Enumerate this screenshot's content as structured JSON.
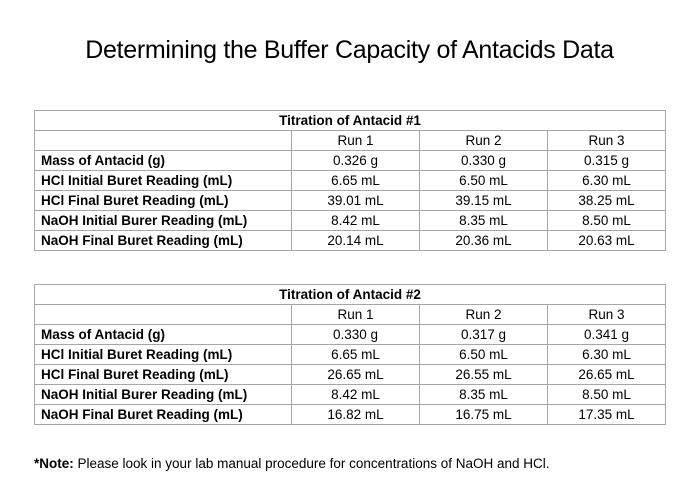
{
  "title": "Determining the Buffer Capacity of Antacids Data",
  "tables": [
    {
      "title": "Titration of Antacid #1",
      "columns": [
        "Run 1",
        "Run 2",
        "Run 3"
      ],
      "rows": [
        {
          "label": "Mass of Antacid (g)",
          "values": [
            "0.326 g",
            "0.330 g",
            "0.315 g"
          ]
        },
        {
          "label": "HCl Initial Buret Reading (mL)",
          "values": [
            "6.65 mL",
            "6.50 mL",
            "6.30 mL"
          ]
        },
        {
          "label": "HCl Final Buret Reading (mL)",
          "values": [
            "39.01 mL",
            "39.15 mL",
            "38.25 mL"
          ]
        },
        {
          "label": "NaOH Initial Burer Reading (mL)",
          "values": [
            "8.42 mL",
            "8.35 mL",
            "8.50 mL"
          ]
        },
        {
          "label": "NaOH Final Buret Reading (mL)",
          "values": [
            "20.14 mL",
            "20.36 mL",
            "20.63 mL"
          ]
        }
      ]
    },
    {
      "title": "Titration of Antacid #2",
      "columns": [
        "Run 1",
        "Run 2",
        "Run 3"
      ],
      "rows": [
        {
          "label": "Mass of Antacid (g)",
          "values": [
            "0.330 g",
            "0.317 g",
            "0.341 g"
          ]
        },
        {
          "label": "HCl Initial Buret Reading (mL)",
          "values": [
            "6.65 mL",
            "6.50 mL",
            "6.30 mL"
          ]
        },
        {
          "label": "HCl Final Buret Reading (mL)",
          "values": [
            "26.65 mL",
            "26.55 mL",
            "26.65 mL"
          ]
        },
        {
          "label": "NaOH Initial Burer Reading (mL)",
          "values": [
            "8.42 mL",
            "8.35 mL",
            "8.50 mL"
          ]
        },
        {
          "label": "NaOH Final Buret Reading (mL)",
          "values": [
            "16.82 mL",
            "16.75 mL",
            "17.35 mL"
          ]
        }
      ]
    }
  ],
  "note": {
    "prefix": "*Note:",
    "text": " Please look in your lab manual procedure for concentrations of NaOH and HCl."
  }
}
